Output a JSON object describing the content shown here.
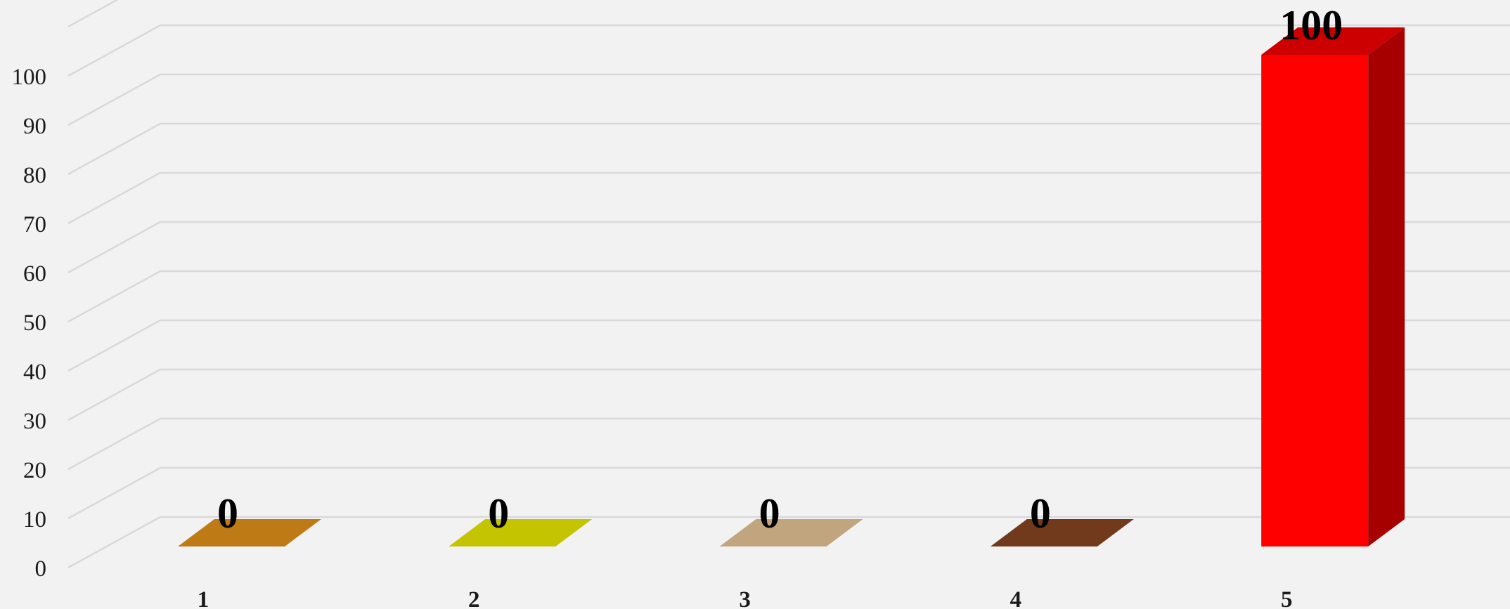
{
  "chart_data": {
    "type": "bar",
    "style": "3d-column",
    "categories": [
      "1",
      "2",
      "3",
      "4",
      "5"
    ],
    "values": [
      0,
      0,
      0,
      0,
      100
    ],
    "data_labels": [
      "0",
      "0",
      "0",
      "0",
      "100"
    ],
    "colors": [
      "#be7a14",
      "#c4c400",
      "#c0a57e",
      "#723a1c",
      "#ff0000"
    ],
    "ylim": [
      0,
      100
    ],
    "yticks": [
      0,
      10,
      20,
      30,
      40,
      50,
      60,
      70,
      80,
      90,
      100
    ],
    "title": "",
    "xlabel": "",
    "ylabel": "",
    "grid": true,
    "legend": "none",
    "background": "#f2f2f2"
  }
}
